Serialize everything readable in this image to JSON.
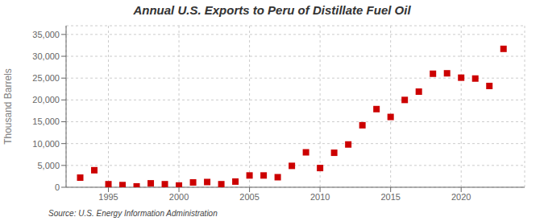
{
  "chart_data": {
    "type": "scatter",
    "title": "Annual U.S. Exports to Peru of Distillate Fuel Oil",
    "ylabel": "Thousand Barrels",
    "annotation": "Source: U.S. Energy Information Administration",
    "x": [
      1993,
      1994,
      1995,
      1996,
      1997,
      1998,
      1999,
      2000,
      2001,
      2002,
      2003,
      2004,
      2005,
      2006,
      2007,
      2008,
      2009,
      2010,
      2011,
      2012,
      2013,
      2014,
      2015,
      2016,
      2017,
      2018,
      2019,
      2020,
      2021,
      2022,
      2023
    ],
    "values": [
      2200,
      3900,
      700,
      500,
      200,
      900,
      700,
      400,
      1100,
      1200,
      700,
      1300,
      2700,
      2700,
      2300,
      4900,
      8000,
      4400,
      7900,
      9800,
      14200,
      17900,
      16100,
      20000,
      21900,
      26000,
      26100,
      25100,
      24900,
      23200,
      31700
    ],
    "color": "#cc0000",
    "marker": "square",
    "xlim": [
      1992.0,
      2024.5
    ],
    "xticks": [
      1995,
      2000,
      2005,
      2010,
      2015,
      2020
    ],
    "ylim": [
      0,
      37000
    ],
    "yticks": [
      0,
      {
        "value": 5000,
        "label": "5,000"
      },
      {
        "value": 10000,
        "label": "10,000"
      },
      {
        "value": 15000,
        "label": "15,000"
      },
      {
        "value": 20000,
        "label": "20,000"
      },
      {
        "value": 25000,
        "label": "25,000"
      },
      {
        "value": 30000,
        "label": "30,000"
      },
      {
        "value": 35000,
        "label": "35,000"
      }
    ],
    "grid": true
  }
}
